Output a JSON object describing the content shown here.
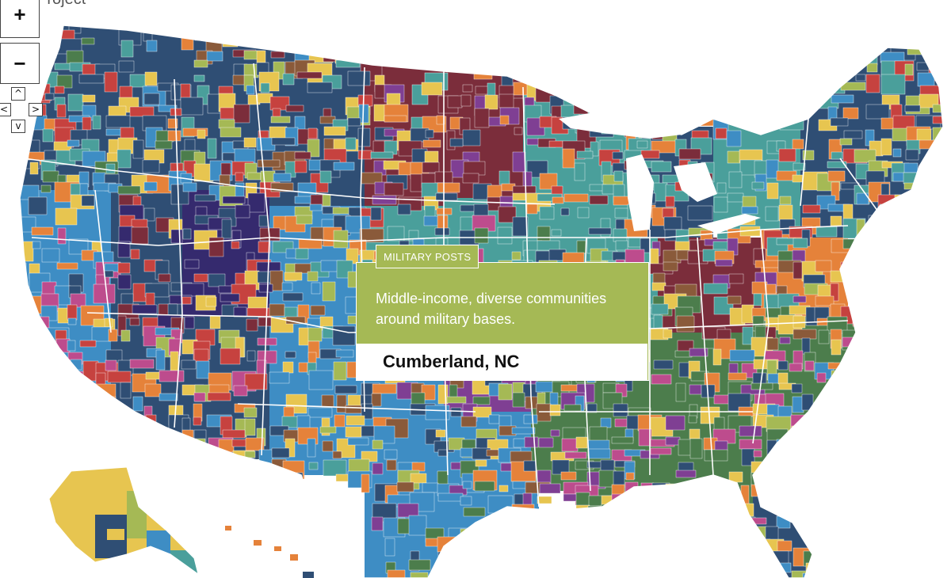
{
  "header": {
    "title": "Project"
  },
  "controls": {
    "zoom_in_label": "+",
    "zoom_out_label": "−",
    "pan_up_label": "^",
    "pan_left_label": "<",
    "pan_right_label": ">",
    "pan_down_label": "v"
  },
  "tooltip": {
    "category": "MILITARY POSTS",
    "description": "Middle-income, diverse communities around military bases.",
    "county": "Cumberland, NC",
    "color": "#a5b955"
  },
  "palette": {
    "navy": "#2f4e74",
    "teal": "#4a9f9b",
    "maroon": "#7b2d3b",
    "purple": "#7f3f93",
    "indigo": "#352a6e",
    "green": "#4c7d4c",
    "sky": "#3e8dc4",
    "orange": "#e5823a",
    "yellow": "#e7c550",
    "red": "#c6423f",
    "magenta": "#bd4c8d",
    "olive": "#a5b955",
    "brown": "#8a5a3a"
  }
}
